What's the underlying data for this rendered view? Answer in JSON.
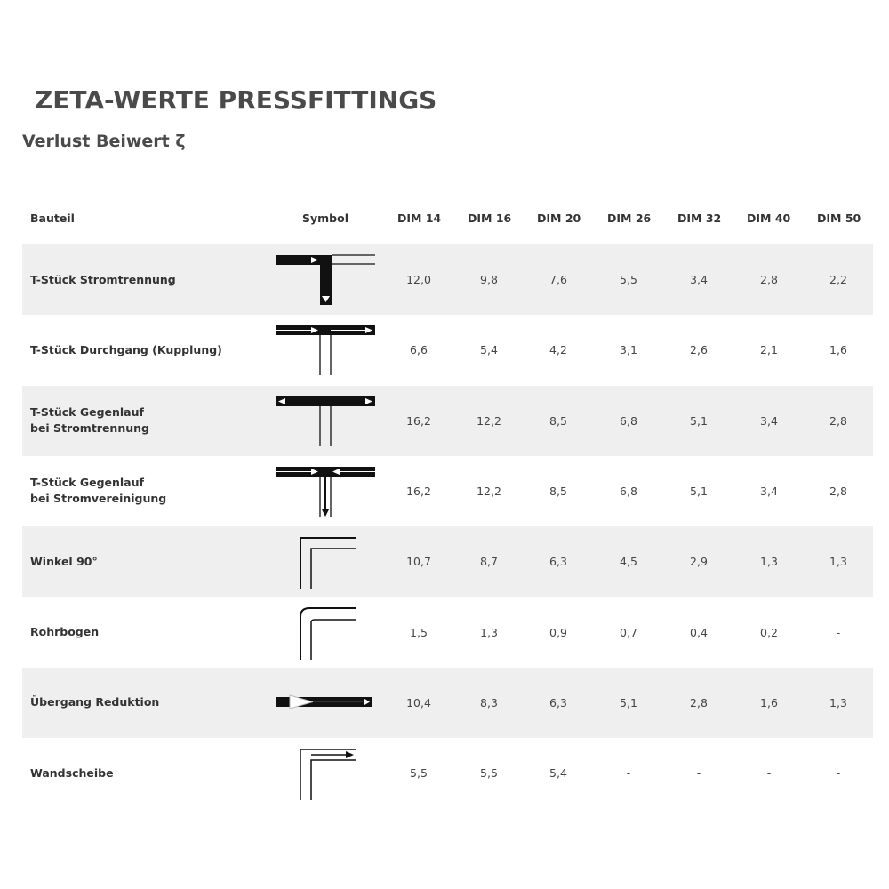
{
  "title": "ZETA-WERTE PRESSFITTINGS",
  "subtitle": "Verlust Beiwert ζ",
  "table": {
    "headers": [
      "Bauteil",
      "Symbol",
      "DIM 14",
      "DIM 16",
      "DIM 20",
      "DIM 26",
      "DIM 32",
      "DIM 40",
      "DIM 50"
    ],
    "rows": [
      {
        "name": "T-Stück Stromtrennung",
        "symbol": "tee-branch-split-icon",
        "values": [
          "12,0",
          "9,8",
          "7,6",
          "5,5",
          "3,4",
          "2,8",
          "2,2"
        ]
      },
      {
        "name": "T-Stück Durchgang (Kupplung)",
        "symbol": "tee-straight-through-icon",
        "values": [
          "6,6",
          "5,4",
          "4,2",
          "3,1",
          "2,6",
          "2,1",
          "1,6"
        ]
      },
      {
        "name": "T-Stück Gegenlauf\nbei Stromtrennung",
        "symbol": "tee-counterflow-split-icon",
        "values": [
          "16,2",
          "12,2",
          "8,5",
          "6,8",
          "5,1",
          "3,4",
          "2,8"
        ]
      },
      {
        "name": "T-Stück Gegenlauf\nbei Stromvereinigung",
        "symbol": "tee-counterflow-merge-icon",
        "values": [
          "16,2",
          "12,2",
          "8,5",
          "6,8",
          "5,1",
          "3,4",
          "2,8"
        ]
      },
      {
        "name": "Winkel 90°",
        "symbol": "elbow-90-icon",
        "values": [
          "10,7",
          "8,7",
          "6,3",
          "4,5",
          "2,9",
          "1,3",
          "1,3"
        ]
      },
      {
        "name": "Rohrbogen",
        "symbol": "pipe-bend-icon",
        "values": [
          "1,5",
          "1,3",
          "0,9",
          "0,7",
          "0,4",
          "0,2",
          "-"
        ]
      },
      {
        "name": "Übergang Reduktion",
        "symbol": "reducer-icon",
        "values": [
          "10,4",
          "8,3",
          "6,3",
          "5,1",
          "2,8",
          "1,6",
          "1,3"
        ]
      },
      {
        "name": "Wandscheibe",
        "symbol": "wall-plate-icon",
        "values": [
          "5,5",
          "5,5",
          "5,4",
          "-",
          "-",
          "-",
          "-"
        ]
      }
    ]
  }
}
